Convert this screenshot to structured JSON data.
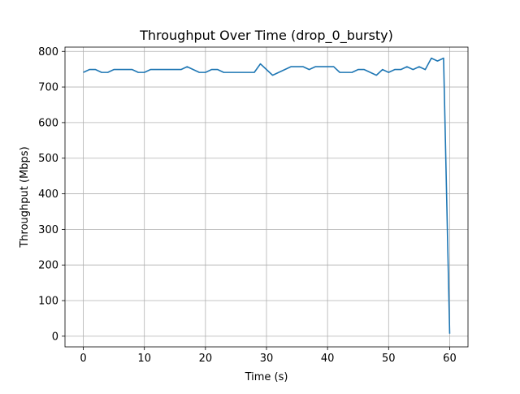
{
  "chart_data": {
    "type": "line",
    "title": "Throughput Over Time (drop_0_bursty)",
    "xlabel": "Time (s)",
    "ylabel": "Throughput (Mbps)",
    "xlim": [
      -3,
      63
    ],
    "ylim": [
      -30,
      812
    ],
    "xticks": [
      0,
      10,
      20,
      30,
      40,
      50,
      60
    ],
    "yticks": [
      0,
      100,
      200,
      300,
      400,
      500,
      600,
      700,
      800
    ],
    "grid": true,
    "series": [
      {
        "color": "#1f77b4",
        "x": [
          0,
          1,
          2,
          3,
          4,
          5,
          6,
          7,
          8,
          9,
          10,
          11,
          12,
          13,
          14,
          15,
          16,
          17,
          18,
          19,
          20,
          21,
          22,
          23,
          24,
          25,
          26,
          27,
          28,
          29,
          30,
          31,
          32,
          33,
          34,
          35,
          36,
          37,
          38,
          39,
          40,
          41,
          42,
          43,
          44,
          45,
          46,
          47,
          48,
          49,
          50,
          51,
          52,
          53,
          54,
          55,
          56,
          57,
          58,
          59,
          60
        ],
        "y": [
          741,
          749,
          749,
          741,
          741,
          749,
          749,
          749,
          749,
          741,
          741,
          749,
          749,
          749,
          749,
          749,
          749,
          757,
          749,
          741,
          741,
          749,
          749,
          741,
          741,
          741,
          741,
          741,
          741,
          765,
          749,
          733,
          741,
          749,
          757,
          757,
          757,
          749,
          757,
          757,
          757,
          757,
          741,
          741,
          741,
          749,
          749,
          741,
          733,
          749,
          741,
          749,
          749,
          757,
          749,
          757,
          749,
          781,
          773,
          781,
          7
        ]
      }
    ]
  }
}
